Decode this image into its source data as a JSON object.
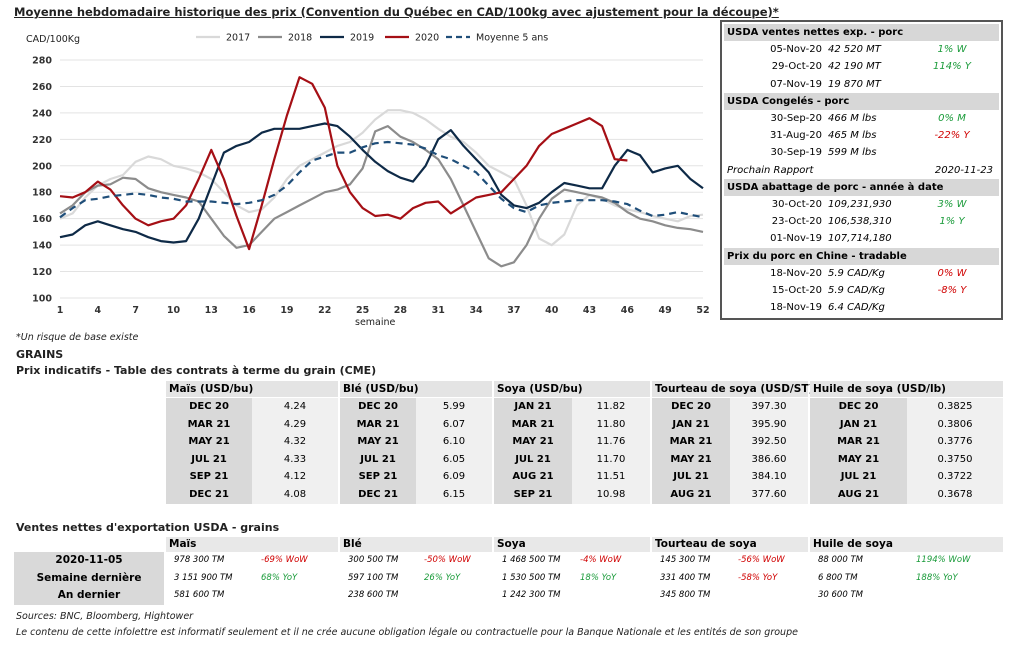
{
  "title": "Moyenne hebdomadaire historique des prix (Convention du Québec en CAD/100kg avec ajustement pour la découpe)*",
  "chart_data": {
    "type": "line",
    "ylabel": "CAD/100Kg",
    "xlabel": "semaine",
    "ylim": [
      100,
      280
    ],
    "xlim": [
      1,
      52
    ],
    "yticks": [
      100,
      120,
      140,
      160,
      180,
      200,
      220,
      240,
      260,
      280
    ],
    "xticks": [
      1,
      4,
      7,
      10,
      13,
      16,
      19,
      22,
      25,
      28,
      31,
      34,
      37,
      40,
      43,
      46,
      49,
      52
    ],
    "grid": true,
    "legend": "top",
    "series": [
      {
        "name": "2017",
        "color": "#d9d9d9",
        "dash": false,
        "width": 2.2,
        "values": [
          160,
          164,
          176,
          185,
          190,
          193,
          203,
          207,
          205,
          200,
          198,
          195,
          190,
          180,
          170,
          165,
          167,
          176,
          190,
          200,
          205,
          210,
          215,
          218,
          225,
          235,
          242,
          242,
          240,
          235,
          228,
          222,
          218,
          210,
          200,
          195,
          190,
          170,
          145,
          140,
          148,
          170,
          178,
          175,
          170,
          167,
          165,
          162,
          160,
          158,
          162,
          163
        ]
      },
      {
        "name": "2018",
        "color": "#8c8c8c",
        "dash": false,
        "width": 2.2,
        "values": [
          164,
          170,
          180,
          185,
          186,
          191,
          190,
          183,
          180,
          178,
          176,
          173,
          160,
          147,
          138,
          140,
          150,
          160,
          165,
          170,
          175,
          180,
          182,
          186,
          198,
          226,
          230,
          222,
          218,
          212,
          205,
          190,
          170,
          150,
          130,
          124,
          127,
          140,
          160,
          175,
          182,
          180,
          178,
          176,
          172,
          165,
          160,
          158,
          155,
          153,
          152,
          150
        ]
      },
      {
        "name": "2019",
        "color": "#0e2a47",
        "dash": false,
        "width": 2.2,
        "values": [
          146,
          148,
          155,
          158,
          155,
          152,
          150,
          146,
          143,
          142,
          143,
          160,
          185,
          210,
          215,
          218,
          225,
          228,
          228,
          228,
          230,
          232,
          230,
          222,
          212,
          203,
          196,
          191,
          188,
          200,
          220,
          227,
          215,
          205,
          195,
          178,
          170,
          168,
          172,
          180,
          187,
          185,
          183,
          183,
          200,
          212,
          208,
          195,
          198,
          200,
          190,
          183
        ]
      },
      {
        "name": "2020",
        "color": "#a50f15",
        "dash": false,
        "width": 2.2,
        "values": [
          177,
          176,
          180,
          188,
          182,
          170,
          160,
          155,
          158,
          160,
          170,
          190,
          212,
          190,
          162,
          137,
          170,
          205,
          238,
          267,
          262,
          244,
          200,
          180,
          168,
          162,
          163,
          160,
          168,
          172,
          173,
          164,
          170,
          176,
          178,
          180,
          190,
          200,
          215,
          224,
          228,
          232,
          236,
          230,
          205,
          204
        ]
      },
      {
        "name": "Moyenne 5 ans",
        "color": "#1f4e79",
        "dash": true,
        "width": 2.2,
        "values": [
          161,
          168,
          174,
          175,
          177,
          178,
          179,
          178,
          176,
          175,
          173,
          173,
          173,
          172,
          171,
          172,
          174,
          178,
          185,
          195,
          204,
          207,
          210,
          210,
          214,
          217,
          218,
          217,
          216,
          213,
          208,
          205,
          200,
          195,
          185,
          175,
          168,
          165,
          170,
          172,
          173,
          174,
          174,
          174,
          173,
          171,
          166,
          162,
          163,
          165,
          163,
          161
        ]
      }
    ]
  },
  "chart_note": "*Un risque de base existe",
  "usda": {
    "sections": [
      {
        "title": "USDA ventes nettes exp. - porc",
        "rows": [
          {
            "date": "05-Nov-20",
            "value": "42 520  MT",
            "change": "1% W",
            "color": "g"
          },
          {
            "date": "29-Oct-20",
            "value": "42 190  MT",
            "change": "114% Y",
            "color": "g"
          },
          {
            "date": "07-Nov-19",
            "value": "19 870  MT",
            "change": "",
            "color": ""
          }
        ]
      },
      {
        "title": "USDA Congelés - porc",
        "rows": [
          {
            "date": "30-Sep-20",
            "value": "466 M lbs",
            "change": "0% M",
            "color": "g"
          },
          {
            "date": "31-Aug-20",
            "value": "465 M lbs",
            "change": "-22% Y",
            "color": "r"
          },
          {
            "date": "30-Sep-19",
            "value": "599 M lbs",
            "change": "",
            "color": ""
          }
        ],
        "footer_label": "Prochain Rapport",
        "footer_value": "2020-11-23"
      },
      {
        "title": "USDA abattage de porc - année à date",
        "rows": [
          {
            "date": "30-Oct-20",
            "value": "109,231,930",
            "change": "3% W",
            "color": "g"
          },
          {
            "date": "23-Oct-20",
            "value": "106,538,310",
            "change": "1% Y",
            "color": "g"
          },
          {
            "date": "01-Nov-19",
            "value": "107,714,180",
            "change": "",
            "color": ""
          }
        ]
      },
      {
        "title": "Prix du porc en Chine - tradable",
        "rows": [
          {
            "date": "18-Nov-20",
            "value": "5.9 CAD/Kg",
            "change": "0% W",
            "color": "r"
          },
          {
            "date": "15-Oct-20",
            "value": "5.9 CAD/Kg",
            "change": "-8% Y",
            "color": "r"
          },
          {
            "date": "18-Nov-19",
            "value": "6.4 CAD/Kg",
            "change": "",
            "color": ""
          }
        ]
      }
    ]
  },
  "grains_title": "GRAINS",
  "futures_title": "Prix indicatifs - Table des contrats à terme du grain (CME)",
  "futures": [
    {
      "name": "Maïs (USD/bu)",
      "rows": [
        [
          "DEC 20",
          "4.24"
        ],
        [
          "MAR 21",
          "4.29"
        ],
        [
          "MAY 21",
          "4.32"
        ],
        [
          "JUL 21",
          "4.33"
        ],
        [
          "SEP 21",
          "4.12"
        ],
        [
          "DEC 21",
          "4.08"
        ]
      ]
    },
    {
      "name": "Blé (USD/bu)",
      "rows": [
        [
          "DEC 20",
          "5.99"
        ],
        [
          "MAR 21",
          "6.07"
        ],
        [
          "MAY 21",
          "6.10"
        ],
        [
          "JUL 21",
          "6.05"
        ],
        [
          "SEP 21",
          "6.09"
        ],
        [
          "DEC 21",
          "6.15"
        ]
      ]
    },
    {
      "name": "Soya (USD/bu)",
      "rows": [
        [
          "JAN 21",
          "11.82"
        ],
        [
          "MAR 21",
          "11.80"
        ],
        [
          "MAY 21",
          "11.76"
        ],
        [
          "JUL 21",
          "11.70"
        ],
        [
          "AUG 21",
          "11.51"
        ],
        [
          "SEP 21",
          "10.98"
        ]
      ]
    },
    {
      "name": "Tourteau de soya (USD/ST)",
      "rows": [
        [
          "DEC 20",
          "397.30"
        ],
        [
          "JAN 21",
          "395.90"
        ],
        [
          "MAR 21",
          "392.50"
        ],
        [
          "MAY 21",
          "386.60"
        ],
        [
          "JUL 21",
          "384.10"
        ],
        [
          "AUG 21",
          "377.60"
        ]
      ]
    },
    {
      "name": "Huile de soya (USD/lb)",
      "rows": [
        [
          "DEC 20",
          "0.3825"
        ],
        [
          "JAN 21",
          "0.3806"
        ],
        [
          "MAR 21",
          "0.3776"
        ],
        [
          "MAY 21",
          "0.3750"
        ],
        [
          "JUL 21",
          "0.3722"
        ],
        [
          "AUG 21",
          "0.3678"
        ]
      ]
    }
  ],
  "exports_title": "Ventes nettes d'exportation USDA - grains",
  "exports": {
    "row_labels": [
      "2020-11-05",
      "Semaine dernière",
      "An dernier"
    ],
    "columns": [
      {
        "name": "Maïs",
        "values": [
          "978 300 TM",
          "3 151 900 TM",
          "581 600 TM"
        ],
        "changes": [
          {
            "text": "-69% WoW",
            "color": "r"
          },
          {
            "text": "68% YoY",
            "color": "g"
          }
        ]
      },
      {
        "name": "Blé",
        "values": [
          "300 500 TM",
          "597 100 TM",
          "238 600 TM"
        ],
        "changes": [
          {
            "text": "-50% WoW",
            "color": "r"
          },
          {
            "text": "26% YoY",
            "color": "g"
          }
        ]
      },
      {
        "name": "Soya",
        "values": [
          "1 468 500 TM",
          "1 530 500 TM",
          "1 242 300 TM"
        ],
        "changes": [
          {
            "text": "-4% WoW",
            "color": "r"
          },
          {
            "text": "18% YoY",
            "color": "g"
          }
        ]
      },
      {
        "name": "Tourteau de soya",
        "values": [
          "145 300 TM",
          "331 400 TM",
          "345 800 TM"
        ],
        "changes": [
          {
            "text": "-56% WoW",
            "color": "r"
          },
          {
            "text": "-58% YoY",
            "color": "r"
          }
        ]
      },
      {
        "name": "Huile de soya",
        "values": [
          "88 000 TM",
          "6 800 TM",
          "30 600 TM"
        ],
        "changes": [
          {
            "text": "1194% WoW",
            "color": "g"
          },
          {
            "text": "188% YoY",
            "color": "g"
          }
        ]
      }
    ]
  },
  "sources": "Sources: BNC, Bloomberg, Hightower",
  "disclaimer": "Le contenu de cette infolettre est informatif seulement et il ne crée aucune obligation légale ou contractuelle pour la Banque Nationale et les entités de son groupe"
}
